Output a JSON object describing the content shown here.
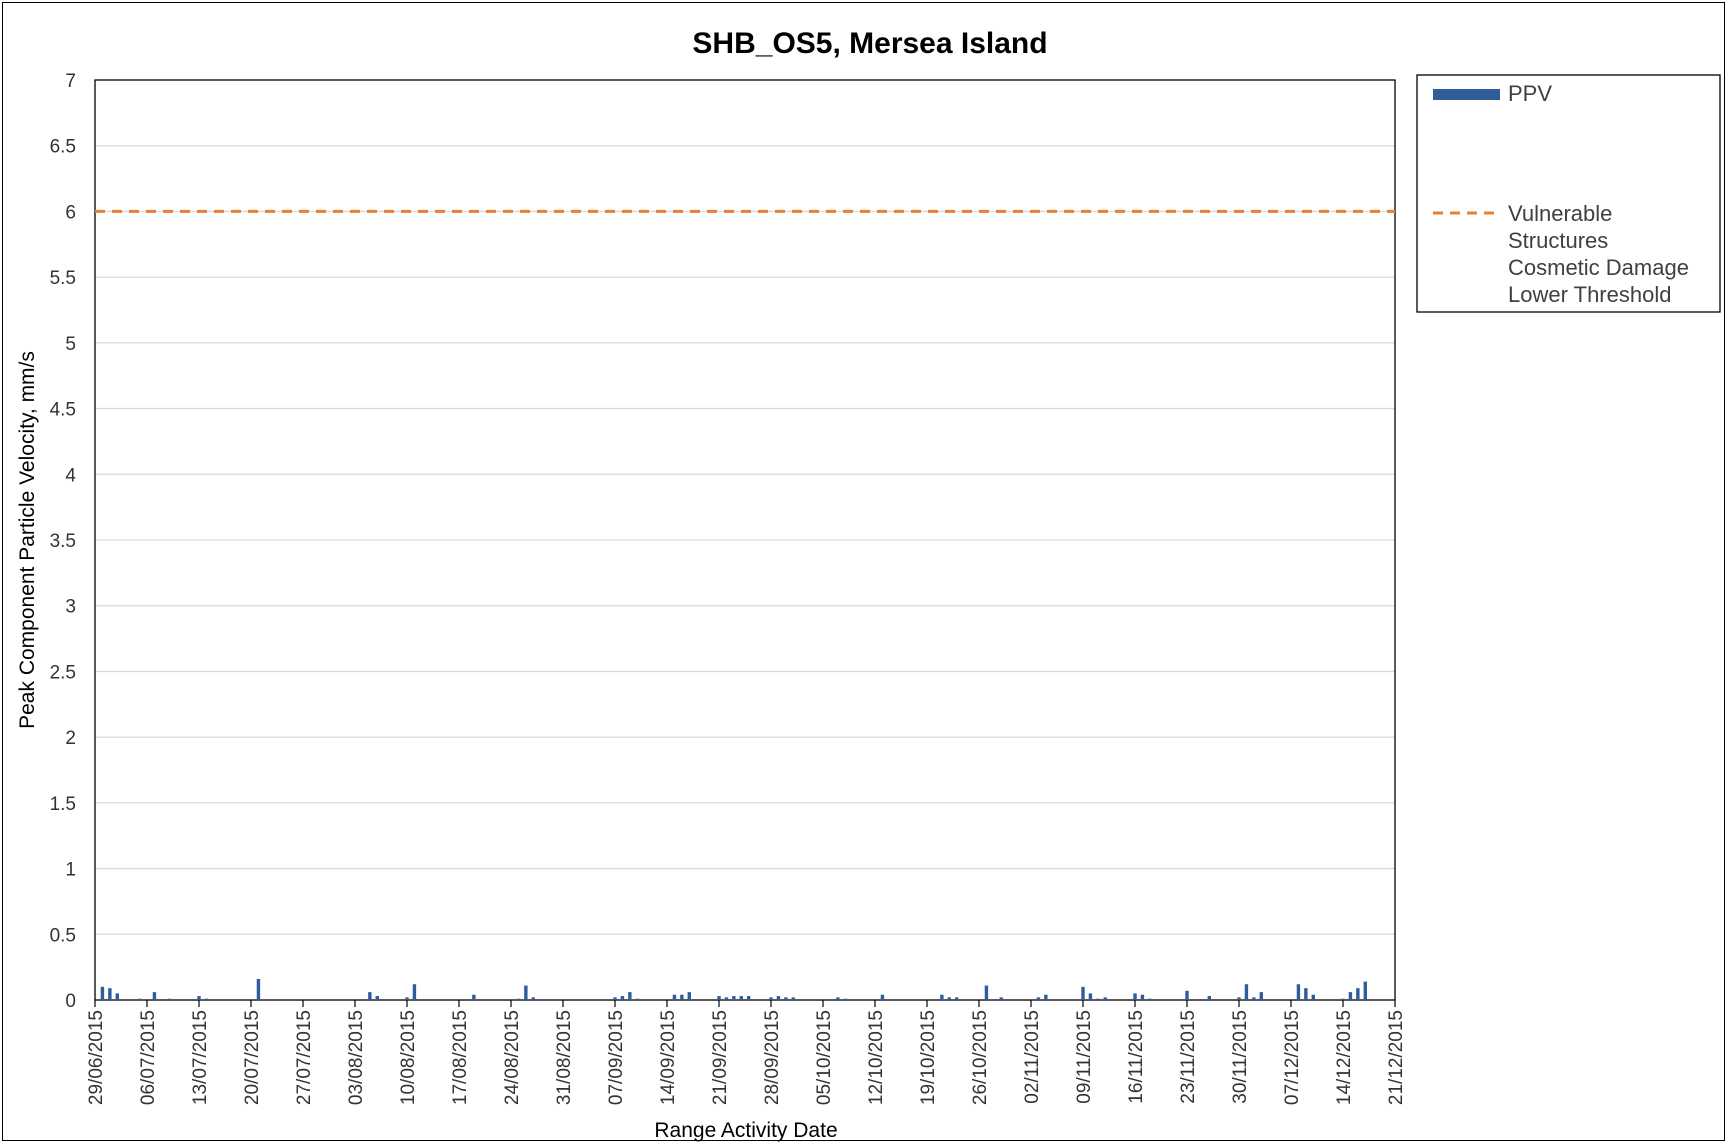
{
  "chart_data": {
    "type": "bar",
    "title": "SHB_OS5, Mersea Island",
    "xlabel": "Range Activity Date",
    "ylabel": "Peak Component Particle Velocity, mm/s",
    "ylim": [
      0,
      7
    ],
    "yticks": [
      "0",
      "0.5",
      "1",
      "1.5",
      "2",
      "2.5",
      "3",
      "3.5",
      "4",
      "4.5",
      "5",
      "5.5",
      "6",
      "6.5",
      "7"
    ],
    "x_start": "29/06/2015",
    "x_end": "21/12/2015",
    "xtick_labels": [
      "29/06/2015",
      "06/07/2015",
      "13/07/2015",
      "20/07/2015",
      "27/07/2015",
      "03/08/2015",
      "10/08/2015",
      "17/08/2015",
      "24/08/2015",
      "31/08/2015",
      "07/09/2015",
      "14/09/2015",
      "21/09/2015",
      "28/09/2015",
      "05/10/2015",
      "12/10/2015",
      "19/10/2015",
      "26/10/2015",
      "02/11/2015",
      "09/11/2015",
      "16/11/2015",
      "23/11/2015",
      "30/11/2015",
      "07/12/2015",
      "14/12/2015",
      "21/12/2015"
    ],
    "grid": true,
    "legend_position": "right",
    "series": [
      {
        "name": "PPV",
        "type": "bar",
        "color": "#2e5d9a",
        "points": [
          {
            "x": "30/06/2015",
            "y": 0.1
          },
          {
            "x": "01/07/2015",
            "y": 0.09
          },
          {
            "x": "02/07/2015",
            "y": 0.05
          },
          {
            "x": "05/07/2015",
            "y": 0.01
          },
          {
            "x": "07/07/2015",
            "y": 0.06
          },
          {
            "x": "09/07/2015",
            "y": 0.01
          },
          {
            "x": "13/07/2015",
            "y": 0.03
          },
          {
            "x": "14/07/2015",
            "y": 0.01
          },
          {
            "x": "21/07/2015",
            "y": 0.16
          },
          {
            "x": "05/08/2015",
            "y": 0.06
          },
          {
            "x": "06/08/2015",
            "y": 0.03
          },
          {
            "x": "10/08/2015",
            "y": 0.02
          },
          {
            "x": "11/08/2015",
            "y": 0.12
          },
          {
            "x": "19/08/2015",
            "y": 0.04
          },
          {
            "x": "25/08/2015",
            "y": 0.01
          },
          {
            "x": "26/08/2015",
            "y": 0.11
          },
          {
            "x": "27/08/2015",
            "y": 0.02
          },
          {
            "x": "07/09/2015",
            "y": 0.02
          },
          {
            "x": "08/09/2015",
            "y": 0.03
          },
          {
            "x": "09/09/2015",
            "y": 0.06
          },
          {
            "x": "10/09/2015",
            "y": 0.01
          },
          {
            "x": "15/09/2015",
            "y": 0.04
          },
          {
            "x": "16/09/2015",
            "y": 0.04
          },
          {
            "x": "17/09/2015",
            "y": 0.06
          },
          {
            "x": "21/09/2015",
            "y": 0.03
          },
          {
            "x": "22/09/2015",
            "y": 0.02
          },
          {
            "x": "23/09/2015",
            "y": 0.03
          },
          {
            "x": "24/09/2015",
            "y": 0.03
          },
          {
            "x": "25/09/2015",
            "y": 0.03
          },
          {
            "x": "28/09/2015",
            "y": 0.02
          },
          {
            "x": "29/09/2015",
            "y": 0.03
          },
          {
            "x": "30/09/2015",
            "y": 0.02
          },
          {
            "x": "01/10/2015",
            "y": 0.02
          },
          {
            "x": "07/10/2015",
            "y": 0.02
          },
          {
            "x": "08/10/2015",
            "y": 0.01
          },
          {
            "x": "13/10/2015",
            "y": 0.04
          },
          {
            "x": "21/10/2015",
            "y": 0.04
          },
          {
            "x": "22/10/2015",
            "y": 0.02
          },
          {
            "x": "23/10/2015",
            "y": 0.02
          },
          {
            "x": "27/10/2015",
            "y": 0.11
          },
          {
            "x": "29/10/2015",
            "y": 0.02
          },
          {
            "x": "03/11/2015",
            "y": 0.02
          },
          {
            "x": "04/11/2015",
            "y": 0.04
          },
          {
            "x": "09/11/2015",
            "y": 0.1
          },
          {
            "x": "10/11/2015",
            "y": 0.05
          },
          {
            "x": "11/11/2015",
            "y": 0.01
          },
          {
            "x": "12/11/2015",
            "y": 0.02
          },
          {
            "x": "16/11/2015",
            "y": 0.05
          },
          {
            "x": "17/11/2015",
            "y": 0.04
          },
          {
            "x": "18/11/2015",
            "y": 0.01
          },
          {
            "x": "23/11/2015",
            "y": 0.07
          },
          {
            "x": "26/11/2015",
            "y": 0.03
          },
          {
            "x": "30/11/2015",
            "y": 0.02
          },
          {
            "x": "01/12/2015",
            "y": 0.12
          },
          {
            "x": "02/12/2015",
            "y": 0.02
          },
          {
            "x": "03/12/2015",
            "y": 0.06
          },
          {
            "x": "08/12/2015",
            "y": 0.12
          },
          {
            "x": "09/12/2015",
            "y": 0.09
          },
          {
            "x": "10/12/2015",
            "y": 0.04
          },
          {
            "x": "14/12/2015",
            "y": 0.01
          },
          {
            "x": "15/12/2015",
            "y": 0.06
          },
          {
            "x": "16/12/2015",
            "y": 0.09
          },
          {
            "x": "17/12/2015",
            "y": 0.14
          }
        ]
      },
      {
        "name": "Vulnerable Structures Cosmetic Damage Lower Threshold",
        "legend_lines": [
          "Vulnerable",
          "Structures",
          "Cosmetic Damage",
          "Lower Threshold"
        ],
        "type": "line",
        "style": "dashed",
        "color": "#ed7d31",
        "y": 6
      }
    ]
  }
}
